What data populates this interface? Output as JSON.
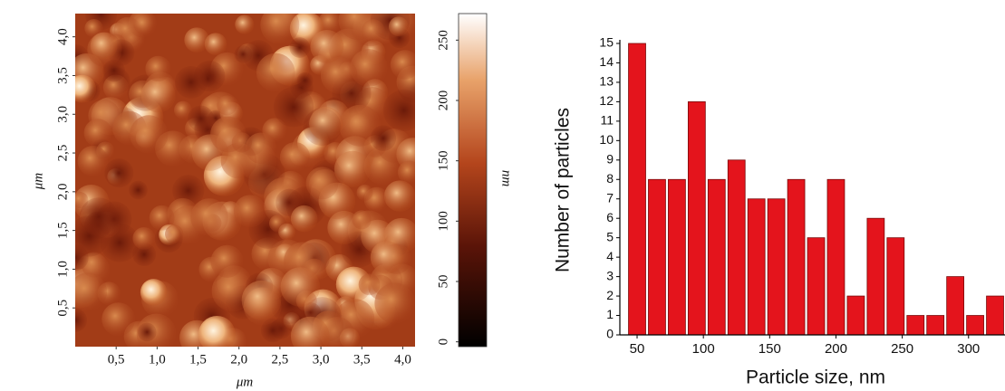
{
  "chart_data": [
    {
      "type": "heatmap",
      "xlabel": "μm",
      "ylabel": "μm",
      "colorbar_label": "nm",
      "xlim": [
        0,
        4.15
      ],
      "ylim": [
        0,
        4.3
      ],
      "clim": [
        -4,
        272
      ],
      "xticks": [
        {
          "value": 0.5,
          "label": "0,5"
        },
        {
          "value": 1.0,
          "label": "1,0"
        },
        {
          "value": 1.5,
          "label": "1,5"
        },
        {
          "value": 2.0,
          "label": "2,0"
        },
        {
          "value": 2.5,
          "label": "2,5"
        },
        {
          "value": 3.0,
          "label": "3,0"
        },
        {
          "value": 3.5,
          "label": "3,5"
        },
        {
          "value": 4.0,
          "label": "4,0"
        }
      ],
      "yticks": [
        {
          "value": 0.5,
          "label": "0,5"
        },
        {
          "value": 1.0,
          "label": "1,0"
        },
        {
          "value": 1.5,
          "label": "1,5"
        },
        {
          "value": 2.0,
          "label": "2,0"
        },
        {
          "value": 2.5,
          "label": "2,5"
        },
        {
          "value": 3.0,
          "label": "3,0"
        },
        {
          "value": 3.5,
          "label": "3,5"
        },
        {
          "value": 4.0,
          "label": "4,0"
        }
      ],
      "cticks": [
        0,
        50,
        100,
        150,
        200,
        250
      ]
    },
    {
      "type": "histogram",
      "xlabel": "Particle size, nm",
      "ylabel": "Number of particles",
      "color": "#e4141c",
      "bins": [
        42.5,
        57.5,
        72.5,
        87.5,
        102.5,
        117.5,
        132.5,
        147.5,
        162.5,
        177.5,
        192.5,
        207.5,
        222.5,
        237.5,
        252.5,
        267.5,
        282.5,
        297.5,
        312.5,
        327.5
      ],
      "counts": [
        15,
        8,
        8,
        12,
        8,
        9,
        7,
        7,
        8,
        5,
        8,
        2,
        6,
        5,
        1,
        1,
        3,
        1,
        2
      ],
      "xlim": [
        37,
        327.5
      ],
      "ylim": [
        0,
        15
      ],
      "xticks": [
        50,
        100,
        150,
        200,
        250,
        300
      ],
      "yticks": [
        0,
        1,
        2,
        3,
        4,
        5,
        6,
        7,
        8,
        9,
        10,
        11,
        12,
        13,
        14,
        15
      ]
    }
  ]
}
